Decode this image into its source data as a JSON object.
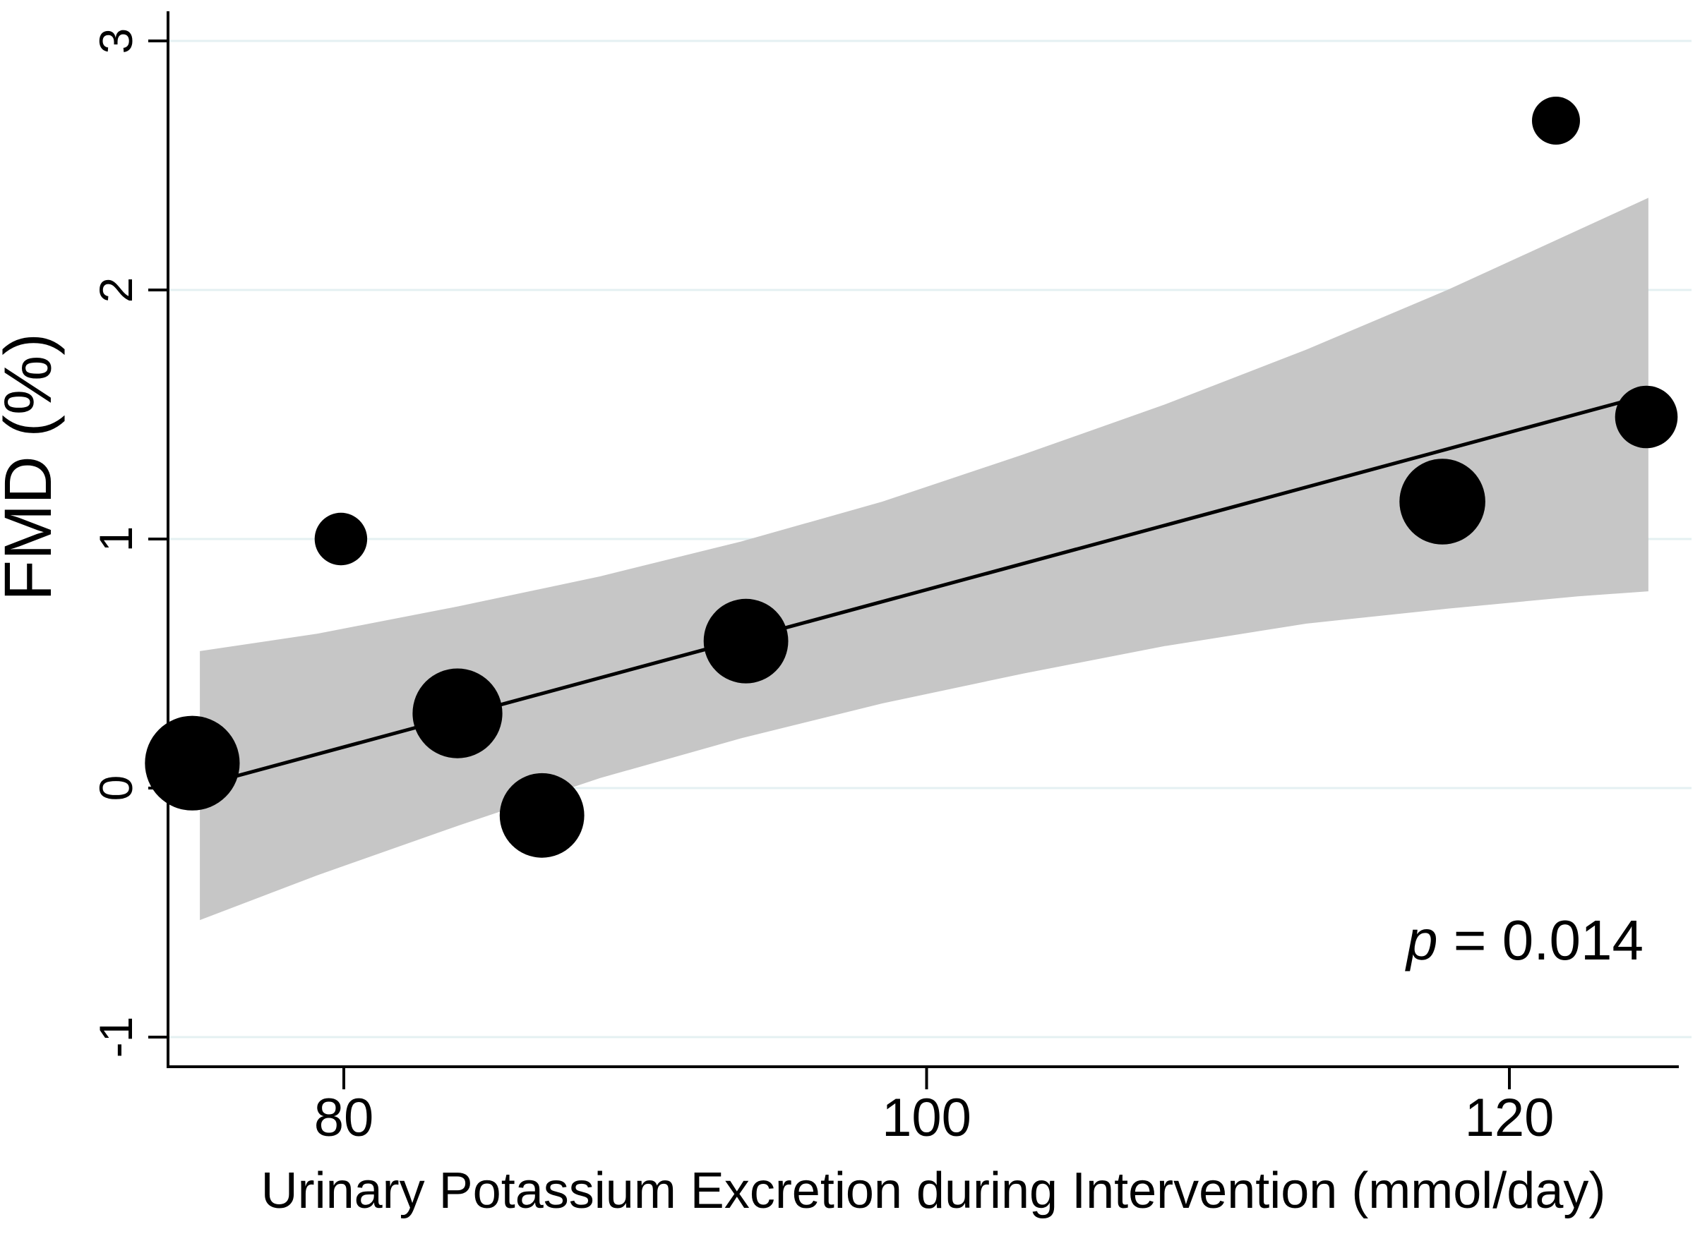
{
  "chart_data": {
    "type": "scatter",
    "subtype": "weighted-bubble-with-linear-fit-and-ci",
    "title": "",
    "xlabel": "Urinary Potassium Excretion during Intervention (mmol/day)",
    "ylabel": "FMD (%)",
    "xticks": [
      80,
      100,
      120
    ],
    "yticks": [
      3,
      2,
      1,
      0,
      -1
    ],
    "xlim": [
      73.9,
      126.5
    ],
    "ylim": [
      -1.12,
      3.11
    ],
    "grid": "horizontal-only",
    "legend": "none",
    "annotation": {
      "full": "p = 0.014",
      "italic_part": "p",
      "rest": " = 0.014"
    },
    "points": [
      {
        "x": 74.8,
        "y": 0.1,
        "weight": 3.9
      },
      {
        "x": 79.9,
        "y": 1.0,
        "weight": 1.2
      },
      {
        "x": 83.9,
        "y": 0.3,
        "weight": 3.5
      },
      {
        "x": 86.8,
        "y": -0.11,
        "weight": 3.1
      },
      {
        "x": 93.8,
        "y": 0.59,
        "weight": 3.1
      },
      {
        "x": 117.7,
        "y": 1.15,
        "weight": 3.2
      },
      {
        "x": 121.6,
        "y": 2.68,
        "weight": 1.0
      },
      {
        "x": 124.7,
        "y": 1.49,
        "weight": 1.7
      }
    ],
    "fit_line": {
      "x": [
        75.1,
        124.8
      ],
      "y": [
        0.01,
        1.58
      ]
    },
    "ci_band": {
      "x": [
        75.06,
        79.1,
        83.95,
        88.79,
        93.64,
        98.48,
        103.33,
        108.17,
        113.02,
        117.87,
        122.35,
        124.77
      ],
      "upper": [
        0.55,
        0.62,
        0.73,
        0.85,
        0.99,
        1.15,
        1.34,
        1.54,
        1.76,
        2.0,
        2.24,
        2.37
      ],
      "lower": [
        -0.53,
        -0.35,
        -0.15,
        0.04,
        0.2,
        0.34,
        0.46,
        0.57,
        0.66,
        0.72,
        0.77,
        0.79
      ]
    },
    "colors": {
      "point": "#000000",
      "fit_line": "#000000",
      "ci_band": "#c6c6c6",
      "gridline": "#e4f0f2",
      "axis": "#000000",
      "background": "#ffffff"
    }
  }
}
